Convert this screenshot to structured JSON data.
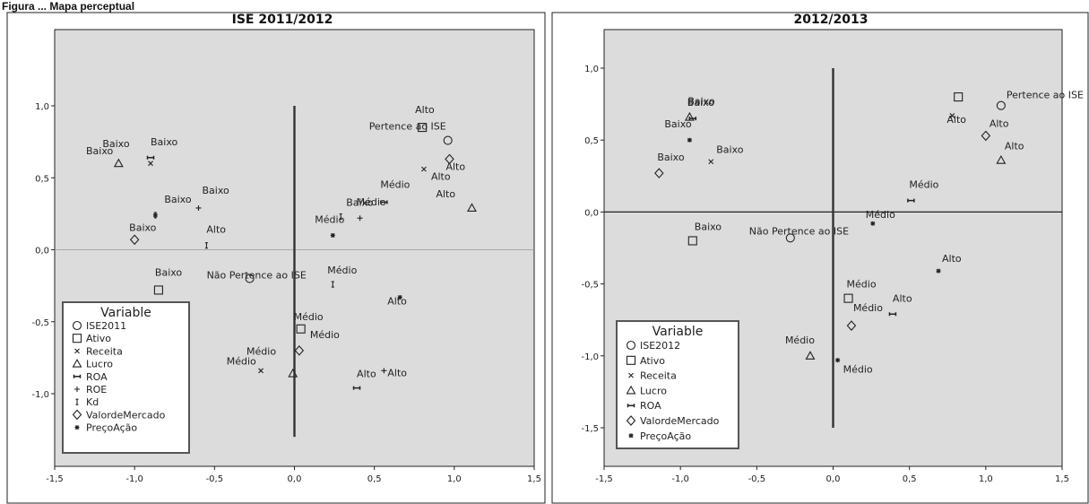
{
  "figure_caption": "Figura ... Mapa perceptual",
  "chart_data": [
    {
      "type": "scatter",
      "title": "ISE 2011/2012",
      "xlim": [
        -1.5,
        1.5
      ],
      "ylim": [
        -1.5,
        1.5
      ],
      "xticks": [
        "-1,5",
        "-1,0",
        "-0,5",
        "0,0",
        "0,5",
        "1,0",
        "1,5"
      ],
      "yticks": [
        "1,0",
        "0,5",
        "0,0",
        "-0,5",
        "-1,0"
      ],
      "legend": {
        "title": "Variable",
        "items": [
          {
            "symbol": "circle",
            "label": "ISE2011"
          },
          {
            "symbol": "square",
            "label": "Ativo"
          },
          {
            "symbol": "x",
            "label": "Receita"
          },
          {
            "symbol": "triangle",
            "label": "Lucro"
          },
          {
            "symbol": "bar",
            "label": "ROA"
          },
          {
            "symbol": "plus",
            "label": "ROE"
          },
          {
            "symbol": "ibeam",
            "label": "Kd"
          },
          {
            "symbol": "diamond",
            "label": "ValordeMercado"
          },
          {
            "symbol": "star",
            "label": "PreçoAção"
          }
        ]
      },
      "points": [
        {
          "series": "ISE2011",
          "symbol": "circle",
          "x": -0.28,
          "y": -0.2,
          "label": "Não Pertence ao ISE"
        },
        {
          "series": "ISE2011",
          "symbol": "circle",
          "x": 0.96,
          "y": 0.76,
          "label": "Pertence ao ISE"
        },
        {
          "series": "Ativo",
          "symbol": "square",
          "x": -0.85,
          "y": -0.28,
          "label": "Baixo"
        },
        {
          "series": "Ativo",
          "symbol": "square",
          "x": 0.04,
          "y": -0.55,
          "label": "Médio"
        },
        {
          "series": "Ativo",
          "symbol": "square",
          "x": 0.8,
          "y": 0.85,
          "label": "Alto"
        },
        {
          "series": "Receita",
          "symbol": "x",
          "x": -0.9,
          "y": 0.6,
          "label": "Baixo"
        },
        {
          "series": "Receita",
          "symbol": "x",
          "x": -0.21,
          "y": -0.84,
          "label": "Médio"
        },
        {
          "series": "Receita",
          "symbol": "x",
          "x": 0.81,
          "y": 0.56,
          "label": "Alto"
        },
        {
          "series": "Lucro",
          "symbol": "triangle",
          "x": -1.1,
          "y": 0.6,
          "label": "Baixo"
        },
        {
          "series": "Lucro",
          "symbol": "triangle",
          "x": -0.01,
          "y": -0.86,
          "label": "Médio"
        },
        {
          "series": "Lucro",
          "symbol": "triangle",
          "x": 1.11,
          "y": 0.29,
          "label": "Alto"
        },
        {
          "series": "ROA",
          "symbol": "bar",
          "x": -0.9,
          "y": 0.64,
          "label": "Baixo"
        },
        {
          "series": "ROA",
          "symbol": "bar",
          "x": 0.56,
          "y": 0.33,
          "label": "Médio"
        },
        {
          "series": "ROA",
          "symbol": "bar",
          "x": 0.39,
          "y": -0.96,
          "label": "Alto"
        },
        {
          "series": "ROE",
          "symbol": "plus",
          "x": -0.6,
          "y": 0.29,
          "label": "Baixo"
        },
        {
          "series": "ROE",
          "symbol": "plus",
          "x": 0.41,
          "y": 0.22,
          "label": "Médio"
        },
        {
          "series": "ROE",
          "symbol": "plus",
          "x": 0.56,
          "y": -0.84,
          "label": "Alto"
        },
        {
          "series": "Kd",
          "symbol": "ibeam",
          "x": -0.87,
          "y": 0.24,
          "label": "Baixo"
        },
        {
          "series": "Kd",
          "symbol": "ibeam",
          "x": 0.24,
          "y": -0.24,
          "label": "Médio"
        },
        {
          "series": "Kd",
          "symbol": "ibeam",
          "x": -0.55,
          "y": 0.03,
          "label": "Alto"
        },
        {
          "series": "Kd",
          "symbol": "ibeam",
          "x": 0.29,
          "y": 0.23,
          "label": "Baixo"
        },
        {
          "series": "ValordeMercado",
          "symbol": "diamond",
          "x": -1.0,
          "y": 0.07,
          "label": "Baixo"
        },
        {
          "series": "ValordeMercado",
          "symbol": "diamond",
          "x": 0.03,
          "y": -0.7,
          "label": "Médio"
        },
        {
          "series": "ValordeMercado",
          "symbol": "diamond",
          "x": 0.97,
          "y": 0.63,
          "label": "Alto"
        },
        {
          "series": "PreçoAção",
          "symbol": "star",
          "x": 0.24,
          "y": 0.1,
          "label": "Médio"
        },
        {
          "series": "PreçoAção",
          "symbol": "star",
          "x": 0.66,
          "y": -0.33,
          "label": "Alto"
        },
        {
          "series": "PreçoAção",
          "symbol": "star",
          "x": -0.87,
          "y": 0.24,
          "label": ""
        }
      ]
    },
    {
      "type": "scatter",
      "title": "2012/2013",
      "xlim": [
        -1.5,
        1.5
      ],
      "ylim": [
        -1.5,
        1.0
      ],
      "xticks": [
        "-1,5",
        "-1,0",
        "-0,5",
        "0,0",
        "0,5",
        "1,0",
        "1,5"
      ],
      "yticks": [
        "1,0",
        "0,5",
        "0,0",
        "-0,5",
        "-1,0",
        "-1,5"
      ],
      "legend": {
        "title": "Variable",
        "items": [
          {
            "symbol": "circle",
            "label": "ISE2012"
          },
          {
            "symbol": "square",
            "label": "Ativo"
          },
          {
            "symbol": "x",
            "label": "Receita"
          },
          {
            "symbol": "triangle",
            "label": "Lucro"
          },
          {
            "symbol": "bar",
            "label": "ROA"
          },
          {
            "symbol": "diamond",
            "label": "ValordeMercado"
          },
          {
            "symbol": "star",
            "label": "PreçoAção"
          }
        ]
      },
      "points": [
        {
          "series": "ISE2012",
          "symbol": "circle",
          "x": -0.28,
          "y": -0.18,
          "label": "Não Pertence ao ISE"
        },
        {
          "series": "ISE2012",
          "symbol": "circle",
          "x": 1.1,
          "y": 0.74,
          "label": "Pertence ao ISE"
        },
        {
          "series": "Ativo",
          "symbol": "square",
          "x": -0.92,
          "y": -0.2,
          "label": "Baixo"
        },
        {
          "series": "Ativo",
          "symbol": "square",
          "x": 0.1,
          "y": -0.6,
          "label": "Médio"
        },
        {
          "series": "Ativo",
          "symbol": "square",
          "x": 0.82,
          "y": 0.8,
          "label": ""
        },
        {
          "series": "Receita",
          "symbol": "x",
          "x": -0.8,
          "y": 0.35,
          "label": "Baixo"
        },
        {
          "series": "Receita",
          "symbol": "x",
          "x": 0.78,
          "y": 0.67,
          "label": "Alto"
        },
        {
          "series": "Lucro",
          "symbol": "triangle",
          "x": -0.94,
          "y": 0.66,
          "label": "Baixo"
        },
        {
          "series": "Lucro",
          "symbol": "triangle",
          "x": -0.15,
          "y": -1.0,
          "label": "Médio"
        },
        {
          "series": "Lucro",
          "symbol": "triangle",
          "x": 1.1,
          "y": 0.36,
          "label": "Alto"
        },
        {
          "series": "ROA",
          "symbol": "bar",
          "x": -0.92,
          "y": 0.65,
          "label": "Baixo"
        },
        {
          "series": "ROA",
          "symbol": "bar",
          "x": 0.51,
          "y": 0.08,
          "label": "Médio"
        },
        {
          "series": "ROA",
          "symbol": "bar",
          "x": 0.39,
          "y": -0.71,
          "label": "Alto"
        },
        {
          "series": "ValordeMercado",
          "symbol": "diamond",
          "x": -1.14,
          "y": 0.27,
          "label": "Baixo"
        },
        {
          "series": "ValordeMercado",
          "symbol": "diamond",
          "x": 0.12,
          "y": -0.79,
          "label": "Médio"
        },
        {
          "series": "ValordeMercado",
          "symbol": "diamond",
          "x": 1.0,
          "y": 0.53,
          "label": "Alto"
        },
        {
          "series": "PreçoAção",
          "symbol": "star",
          "x": -0.94,
          "y": 0.5,
          "label": "Baixo"
        },
        {
          "series": "PreçoAção",
          "symbol": "star",
          "x": 0.26,
          "y": -0.08,
          "label": "Médio"
        },
        {
          "series": "PreçoAção",
          "symbol": "star",
          "x": 0.69,
          "y": -0.41,
          "label": "Alto"
        },
        {
          "series": "PreçoAção",
          "symbol": "star",
          "x": 0.03,
          "y": -1.03,
          "label": "Médio"
        }
      ]
    }
  ]
}
